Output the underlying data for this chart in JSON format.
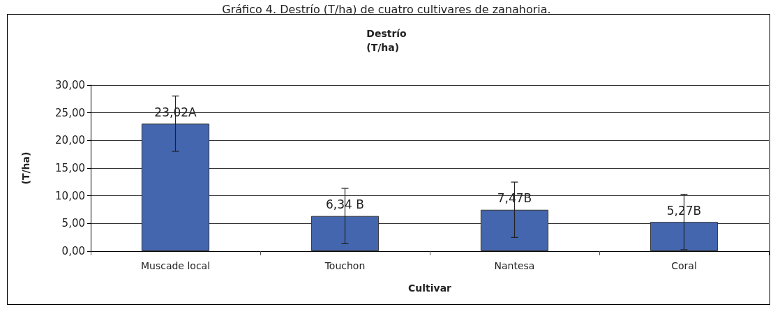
{
  "chart_data": {
    "type": "bar",
    "title": "Gráfico 4. Destrío (T/ha) de cuatro cultivares de zanahoria.",
    "subtitle": "Destrío\n(T/ha)",
    "xlabel": "Cultivar",
    "ylabel": "(T/ha)",
    "categories": [
      "Muscade local",
      "Touchon",
      "Nantesa",
      "Coral"
    ],
    "values": [
      23.02,
      6.34,
      7.47,
      5.27
    ],
    "errors": [
      5,
      5,
      5,
      5
    ],
    "value_labels": [
      "23,02A",
      "6,34 B",
      "7,47B",
      "5,27B"
    ],
    "color": "#4466ae",
    "ylim": [
      0,
      30
    ],
    "yticks": [
      {
        "value": 0,
        "label": "0,00"
      },
      {
        "value": 5,
        "label": "5,00"
      },
      {
        "value": 10,
        "label": "10,00"
      },
      {
        "value": 15,
        "label": "15,00"
      },
      {
        "value": 20,
        "label": "20,00"
      },
      {
        "value": 25,
        "label": "25,00"
      },
      {
        "value": 30,
        "label": "30,00"
      }
    ],
    "grid": "y"
  }
}
